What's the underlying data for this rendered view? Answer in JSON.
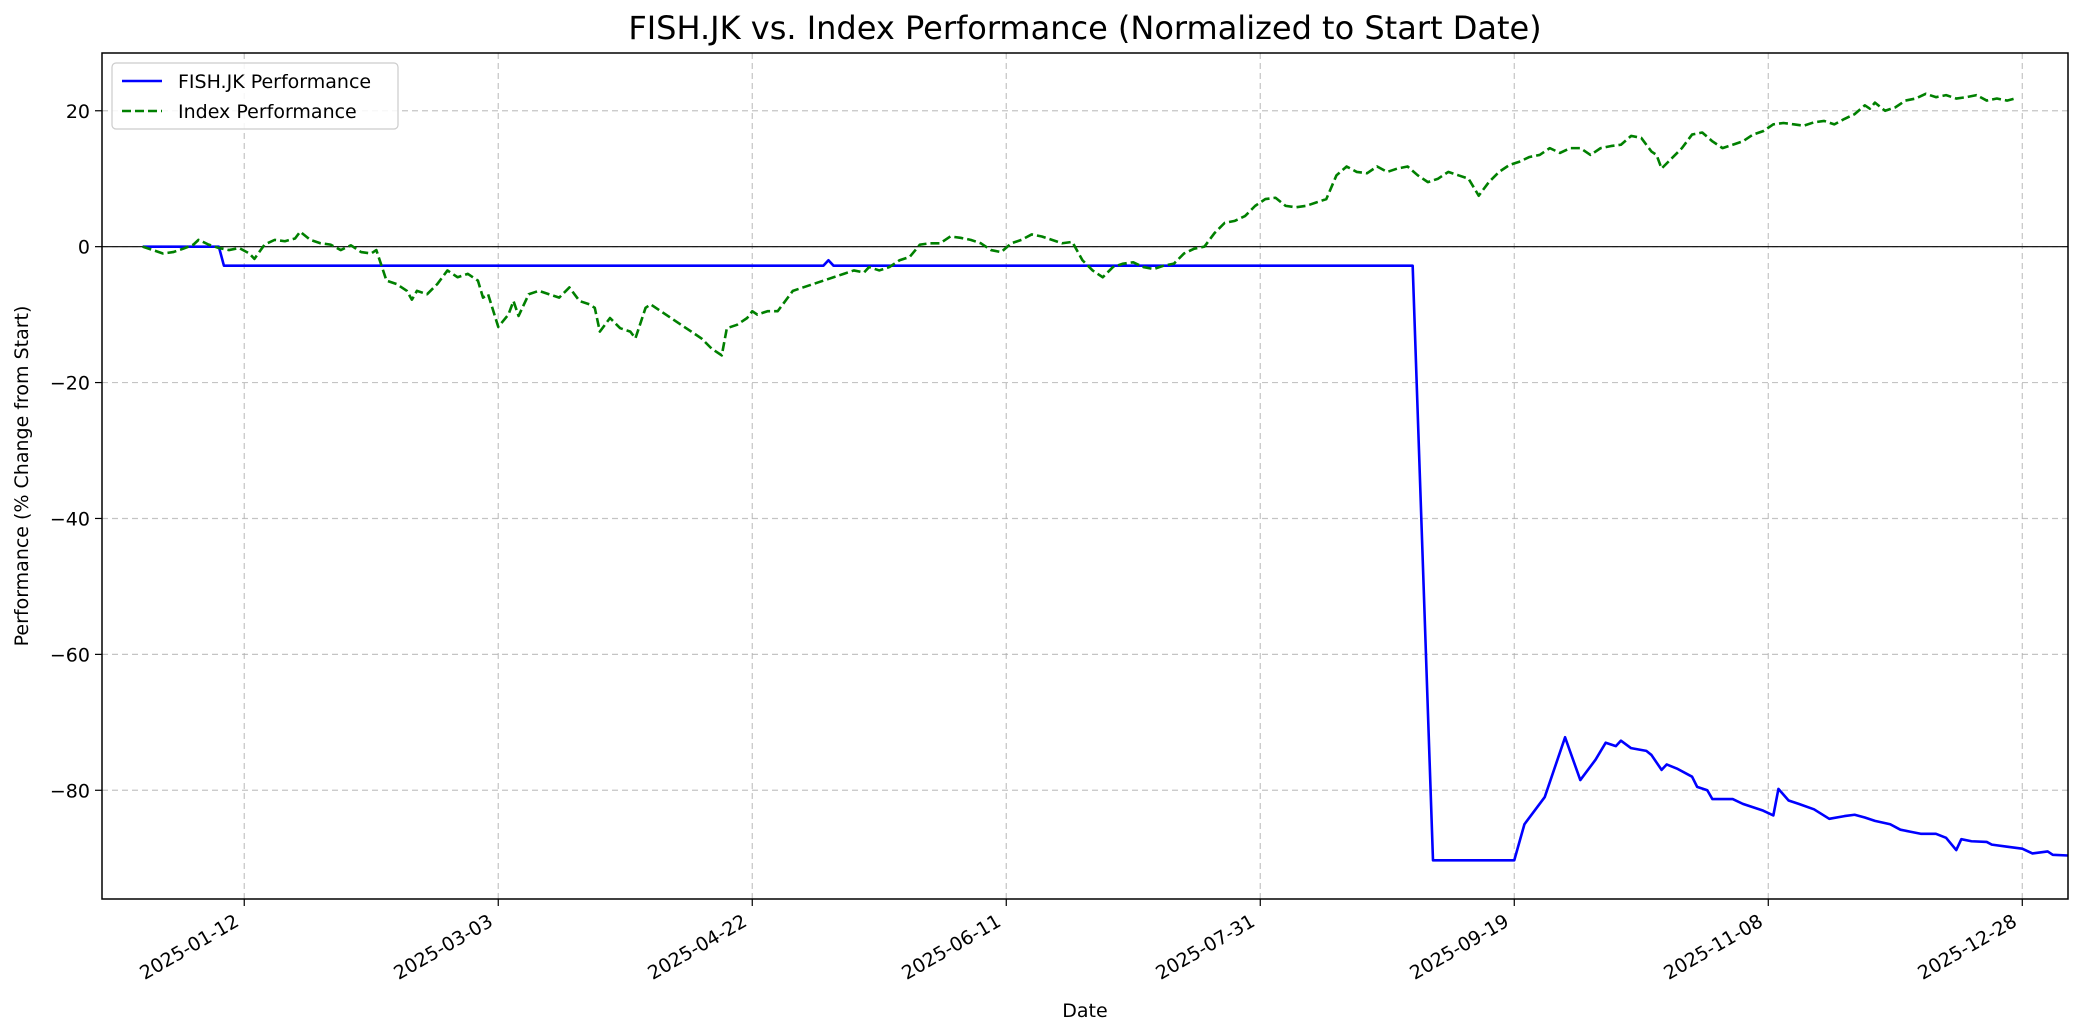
{
  "chart_data": {
    "type": "line",
    "title": "FISH.JK vs. Index Performance (Normalized to Start Date)",
    "xlabel": "Date",
    "ylabel": "Performance (% Change from Start)",
    "xlim": [
      "2024-12-15",
      "2026-01-06"
    ],
    "ylim": [
      -96,
      28.5
    ],
    "x_ticks": [
      "2025-01-12",
      "2025-03-03",
      "2025-04-22",
      "2025-06-11",
      "2025-07-31",
      "2025-09-19",
      "2025-11-08",
      "2025-12-28"
    ],
    "y_ticks": [
      20,
      0,
      -20,
      -40,
      -60,
      -80
    ],
    "y_tick_labels": [
      "20",
      "0",
      "−20",
      "−40",
      "−60",
      "−80"
    ],
    "grid": true,
    "zero_line": 0,
    "legend": "top-left",
    "series": [
      {
        "name": "FISH.JK Performance",
        "color": "#0000ff",
        "style": "solid",
        "points": [
          [
            "2024-12-23",
            0
          ],
          [
            "2025-01-07",
            0
          ],
          [
            "2025-01-08",
            -2.8
          ],
          [
            "2025-05-06",
            -2.8
          ],
          [
            "2025-05-07",
            -2.0
          ],
          [
            "2025-05-08",
            -2.8
          ],
          [
            "2025-08-30",
            -2.8
          ],
          [
            "2025-09-03",
            -90.3
          ],
          [
            "2025-09-19",
            -90.3
          ],
          [
            "2025-09-21",
            -85.0
          ],
          [
            "2025-09-25",
            -81.0
          ],
          [
            "2025-09-29",
            -72.2
          ],
          [
            "2025-10-02",
            -78.5
          ],
          [
            "2025-10-05",
            -75.5
          ],
          [
            "2025-10-07",
            -73.0
          ],
          [
            "2025-10-09",
            -73.5
          ],
          [
            "2025-10-10",
            -72.7
          ],
          [
            "2025-10-12",
            -73.8
          ],
          [
            "2025-10-15",
            -74.2
          ],
          [
            "2025-10-16",
            -74.8
          ],
          [
            "2025-10-18",
            -77.0
          ],
          [
            "2025-10-19",
            -76.2
          ],
          [
            "2025-10-21",
            -76.8
          ],
          [
            "2025-10-24",
            -78.0
          ],
          [
            "2025-10-25",
            -79.5
          ],
          [
            "2025-10-27",
            -80.0
          ],
          [
            "2025-10-28",
            -81.3
          ],
          [
            "2025-11-01",
            -81.3
          ],
          [
            "2025-11-03",
            -82.0
          ],
          [
            "2025-11-05",
            -82.5
          ],
          [
            "2025-11-07",
            -83.0
          ],
          [
            "2025-11-09",
            -83.7
          ],
          [
            "2025-11-10",
            -79.8
          ],
          [
            "2025-11-12",
            -81.5
          ],
          [
            "2025-11-14",
            -82.0
          ],
          [
            "2025-11-17",
            -82.8
          ],
          [
            "2025-11-20",
            -84.2
          ],
          [
            "2025-11-23",
            -83.8
          ],
          [
            "2025-11-25",
            -83.6
          ],
          [
            "2025-11-27",
            -84.0
          ],
          [
            "2025-11-29",
            -84.5
          ],
          [
            "2025-12-02",
            -85.0
          ],
          [
            "2025-12-04",
            -85.8
          ],
          [
            "2025-12-06",
            -86.1
          ],
          [
            "2025-12-08",
            -86.4
          ],
          [
            "2025-12-11",
            -86.4
          ],
          [
            "2025-12-13",
            -87.0
          ],
          [
            "2025-12-15",
            -88.8
          ],
          [
            "2025-12-16",
            -87.2
          ],
          [
            "2025-12-18",
            -87.5
          ],
          [
            "2025-12-21",
            -87.6
          ],
          [
            "2025-12-22",
            -88.0
          ],
          [
            "2025-12-25",
            -88.3
          ],
          [
            "2025-12-28",
            -88.6
          ],
          [
            "2025-12-30",
            -89.3
          ],
          [
            "2026-01-02",
            -89.0
          ],
          [
            "2026-01-03",
            -89.5
          ],
          [
            "2026-01-06",
            -89.6
          ]
        ]
      },
      {
        "name": "Index Performance",
        "color": "#008000",
        "style": "dashed",
        "points": [
          [
            "2024-12-23",
            0
          ],
          [
            "2024-12-25",
            -0.5
          ],
          [
            "2024-12-27",
            -1.0
          ],
          [
            "2024-12-29",
            -0.8
          ],
          [
            "2024-12-31",
            -0.3
          ],
          [
            "2025-01-02",
            0.3
          ],
          [
            "2025-01-03",
            1.0
          ],
          [
            "2025-01-05",
            0.3
          ],
          [
            "2025-01-07",
            -0.2
          ],
          [
            "2025-01-09",
            -0.5
          ],
          [
            "2025-01-11",
            -0.2
          ],
          [
            "2025-01-13",
            -1.0
          ],
          [
            "2025-01-14",
            -1.8
          ],
          [
            "2025-01-16",
            0.3
          ],
          [
            "2025-01-18",
            1.0
          ],
          [
            "2025-01-20",
            0.8
          ],
          [
            "2025-01-22",
            1.2
          ],
          [
            "2025-01-23",
            2.2
          ],
          [
            "2025-01-25",
            1.0
          ],
          [
            "2025-01-27",
            0.5
          ],
          [
            "2025-01-29",
            0.3
          ],
          [
            "2025-01-31",
            -0.5
          ],
          [
            "2025-02-02",
            0.2
          ],
          [
            "2025-02-04",
            -0.8
          ],
          [
            "2025-02-06",
            -1.0
          ],
          [
            "2025-02-07",
            -0.5
          ],
          [
            "2025-02-09",
            -5.0
          ],
          [
            "2025-02-11",
            -5.5
          ],
          [
            "2025-02-13",
            -6.5
          ],
          [
            "2025-02-14",
            -7.8
          ],
          [
            "2025-02-15",
            -6.5
          ],
          [
            "2025-02-17",
            -7.0
          ],
          [
            "2025-02-19",
            -5.5
          ],
          [
            "2025-02-21",
            -3.5
          ],
          [
            "2025-02-23",
            -4.5
          ],
          [
            "2025-02-25",
            -4.0
          ],
          [
            "2025-02-27",
            -5.0
          ],
          [
            "2025-02-28",
            -7.5
          ],
          [
            "2025-03-01",
            -7.0
          ],
          [
            "2025-03-03",
            -11.8
          ],
          [
            "2025-03-05",
            -10.0
          ],
          [
            "2025-03-06",
            -8.0
          ],
          [
            "2025-03-07",
            -10.2
          ],
          [
            "2025-03-09",
            -7.0
          ],
          [
            "2025-03-11",
            -6.5
          ],
          [
            "2025-03-13",
            -7.0
          ],
          [
            "2025-03-15",
            -7.5
          ],
          [
            "2025-03-17",
            -6.0
          ],
          [
            "2025-03-19",
            -8.0
          ],
          [
            "2025-03-21",
            -8.5
          ],
          [
            "2025-03-22",
            -9.0
          ],
          [
            "2025-03-23",
            -12.5
          ],
          [
            "2025-03-25",
            -10.5
          ],
          [
            "2025-03-27",
            -12.0
          ],
          [
            "2025-03-29",
            -12.5
          ],
          [
            "2025-03-30",
            -13.5
          ],
          [
            "2025-04-01",
            -9.0
          ],
          [
            "2025-04-02",
            -8.5
          ],
          [
            "2025-04-04",
            -9.5
          ],
          [
            "2025-04-06",
            -10.5
          ],
          [
            "2025-04-08",
            -11.5
          ],
          [
            "2025-04-10",
            -12.5
          ],
          [
            "2025-04-12",
            -13.5
          ],
          [
            "2025-04-14",
            -15.0
          ],
          [
            "2025-04-16",
            -16.0
          ],
          [
            "2025-04-17",
            -12.0
          ],
          [
            "2025-04-19",
            -11.5
          ],
          [
            "2025-04-21",
            -10.5
          ],
          [
            "2025-04-22",
            -9.5
          ],
          [
            "2025-04-23",
            -10.0
          ],
          [
            "2025-04-25",
            -9.5
          ],
          [
            "2025-04-27",
            -9.5
          ],
          [
            "2025-04-29",
            -7.5
          ],
          [
            "2025-04-30",
            -6.5
          ],
          [
            "2025-05-02",
            -6.0
          ],
          [
            "2025-05-04",
            -5.5
          ],
          [
            "2025-05-06",
            -5.0
          ],
          [
            "2025-05-08",
            -4.5
          ],
          [
            "2025-05-10",
            -4.0
          ],
          [
            "2025-05-12",
            -3.5
          ],
          [
            "2025-05-14",
            -3.8
          ],
          [
            "2025-05-15",
            -3.0
          ],
          [
            "2025-05-17",
            -3.5
          ],
          [
            "2025-05-19",
            -3.0
          ],
          [
            "2025-05-21",
            -2.0
          ],
          [
            "2025-05-23",
            -1.5
          ],
          [
            "2025-05-25",
            0.3
          ],
          [
            "2025-05-27",
            0.5
          ],
          [
            "2025-05-29",
            0.5
          ],
          [
            "2025-05-31",
            1.5
          ],
          [
            "2025-06-02",
            1.3
          ],
          [
            "2025-06-04",
            1.0
          ],
          [
            "2025-06-06",
            0.5
          ],
          [
            "2025-06-08",
            -0.5
          ],
          [
            "2025-06-10",
            -0.8
          ],
          [
            "2025-06-12",
            0.5
          ],
          [
            "2025-06-14",
            1.0
          ],
          [
            "2025-06-16",
            1.8
          ],
          [
            "2025-06-18",
            1.5
          ],
          [
            "2025-06-20",
            1.0
          ],
          [
            "2025-06-22",
            0.5
          ],
          [
            "2025-06-24",
            0.7
          ],
          [
            "2025-06-26",
            -2.0
          ],
          [
            "2025-06-28",
            -3.5
          ],
          [
            "2025-06-30",
            -4.5
          ],
          [
            "2025-07-02",
            -3.0
          ],
          [
            "2025-07-04",
            -2.5
          ],
          [
            "2025-07-06",
            -2.3
          ],
          [
            "2025-07-08",
            -3.0
          ],
          [
            "2025-07-10",
            -3.3
          ],
          [
            "2025-07-12",
            -2.8
          ],
          [
            "2025-07-14",
            -2.5
          ],
          [
            "2025-07-16",
            -1.0
          ],
          [
            "2025-07-18",
            -0.3
          ],
          [
            "2025-07-20",
            0.0
          ],
          [
            "2025-07-22",
            2.0
          ],
          [
            "2025-07-24",
            3.5
          ],
          [
            "2025-07-26",
            3.8
          ],
          [
            "2025-07-28",
            4.5
          ],
          [
            "2025-07-30",
            6.0
          ],
          [
            "2025-08-01",
            7.0
          ],
          [
            "2025-08-03",
            7.2
          ],
          [
            "2025-08-05",
            6.0
          ],
          [
            "2025-08-07",
            5.8
          ],
          [
            "2025-08-09",
            6.0
          ],
          [
            "2025-08-11",
            6.5
          ],
          [
            "2025-08-13",
            7.0
          ],
          [
            "2025-08-15",
            10.5
          ],
          [
            "2025-08-17",
            11.8
          ],
          [
            "2025-08-19",
            11.0
          ],
          [
            "2025-08-21",
            10.8
          ],
          [
            "2025-08-23",
            11.8
          ],
          [
            "2025-08-25",
            11.0
          ],
          [
            "2025-08-27",
            11.5
          ],
          [
            "2025-08-29",
            11.8
          ],
          [
            "2025-08-31",
            10.5
          ],
          [
            "2025-09-02",
            9.5
          ],
          [
            "2025-09-04",
            10.0
          ],
          [
            "2025-09-06",
            11.0
          ],
          [
            "2025-09-08",
            10.5
          ],
          [
            "2025-09-10",
            10.0
          ],
          [
            "2025-09-12",
            7.5
          ],
          [
            "2025-09-14",
            9.5
          ],
          [
            "2025-09-16",
            11.0
          ],
          [
            "2025-09-18",
            12.0
          ],
          [
            "2025-09-20",
            12.5
          ],
          [
            "2025-09-22",
            13.2
          ],
          [
            "2025-09-24",
            13.5
          ],
          [
            "2025-09-26",
            14.5
          ],
          [
            "2025-09-28",
            13.8
          ],
          [
            "2025-09-30",
            14.5
          ],
          [
            "2025-10-02",
            14.5
          ],
          [
            "2025-10-04",
            13.5
          ],
          [
            "2025-10-06",
            14.5
          ],
          [
            "2025-10-08",
            14.8
          ],
          [
            "2025-10-10",
            15.0
          ],
          [
            "2025-10-12",
            16.3
          ],
          [
            "2025-10-14",
            16.0
          ],
          [
            "2025-10-16",
            14.0
          ],
          [
            "2025-10-17",
            13.5
          ],
          [
            "2025-10-18",
            11.5
          ],
          [
            "2025-10-20",
            13.0
          ],
          [
            "2025-10-22",
            14.5
          ],
          [
            "2025-10-24",
            16.5
          ],
          [
            "2025-10-26",
            16.8
          ],
          [
            "2025-10-28",
            15.5
          ],
          [
            "2025-10-30",
            14.5
          ],
          [
            "2025-11-01",
            15.0
          ],
          [
            "2025-11-03",
            15.5
          ],
          [
            "2025-11-05",
            16.5
          ],
          [
            "2025-11-07",
            17.0
          ],
          [
            "2025-11-09",
            18.0
          ],
          [
            "2025-11-11",
            18.2
          ],
          [
            "2025-11-13",
            18.0
          ],
          [
            "2025-11-15",
            17.8
          ],
          [
            "2025-11-17",
            18.3
          ],
          [
            "2025-11-19",
            18.5
          ],
          [
            "2025-11-21",
            18.0
          ],
          [
            "2025-11-23",
            18.8
          ],
          [
            "2025-11-25",
            19.5
          ],
          [
            "2025-11-27",
            20.8
          ],
          [
            "2025-11-28",
            20.3
          ],
          [
            "2025-11-29",
            21.2
          ],
          [
            "2025-12-01",
            20.0
          ],
          [
            "2025-12-03",
            20.5
          ],
          [
            "2025-12-05",
            21.5
          ],
          [
            "2025-12-07",
            21.8
          ],
          [
            "2025-12-09",
            22.5
          ],
          [
            "2025-12-11",
            22.0
          ],
          [
            "2025-12-13",
            22.3
          ],
          [
            "2025-12-15",
            21.8
          ],
          [
            "2025-12-17",
            22.0
          ],
          [
            "2025-12-19",
            22.3
          ],
          [
            "2025-12-21",
            21.5
          ],
          [
            "2025-12-23",
            21.8
          ],
          [
            "2025-12-25",
            21.5
          ],
          [
            "2025-12-27",
            21.9
          ]
        ]
      }
    ]
  }
}
